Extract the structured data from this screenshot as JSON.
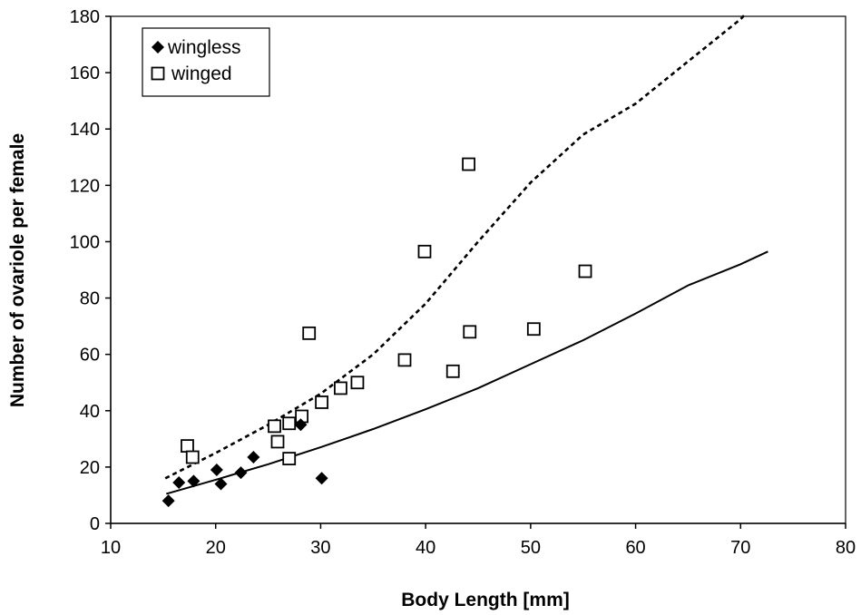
{
  "chart_data": {
    "type": "scatter",
    "xlabel": "Body Length [mm]",
    "ylabel": "Number of ovariole per female",
    "xlim": [
      10,
      80
    ],
    "ylim": [
      0,
      180
    ],
    "xticks": [
      10,
      20,
      30,
      40,
      50,
      60,
      70,
      80
    ],
    "yticks": [
      0,
      20,
      40,
      60,
      80,
      100,
      120,
      140,
      160,
      180
    ],
    "grid": false,
    "legend_position": "top-left",
    "series": [
      {
        "name": "wingless",
        "marker": "filled-diamond",
        "color": "#000000",
        "points": [
          [
            15.5,
            8
          ],
          [
            16.5,
            14.5
          ],
          [
            17.9,
            15
          ],
          [
            20.1,
            19
          ],
          [
            20.5,
            14
          ],
          [
            22.4,
            18
          ],
          [
            23.6,
            23.5
          ],
          [
            28.1,
            35
          ],
          [
            30.1,
            16
          ]
        ]
      },
      {
        "name": "winged",
        "marker": "open-square",
        "color": "#000000",
        "points": [
          [
            17.3,
            27.5
          ],
          [
            17.8,
            23.5
          ],
          [
            25.6,
            34.5
          ],
          [
            25.9,
            29
          ],
          [
            27.0,
            35.5
          ],
          [
            27.0,
            23
          ],
          [
            28.2,
            38
          ],
          [
            28.9,
            67.5
          ],
          [
            30.1,
            43
          ],
          [
            31.9,
            48
          ],
          [
            33.5,
            50
          ],
          [
            38.0,
            58
          ],
          [
            39.9,
            96.5
          ],
          [
            42.6,
            54
          ],
          [
            44.1,
            127.5
          ],
          [
            44.2,
            68
          ],
          [
            50.3,
            69
          ],
          [
            55.2,
            89.5
          ]
        ]
      }
    ],
    "fit_lines": [
      {
        "style": "solid",
        "color": "#000000",
        "points": [
          [
            15.3,
            10.5
          ],
          [
            20,
            15.5
          ],
          [
            25,
            21
          ],
          [
            30,
            27
          ],
          [
            35,
            33.5
          ],
          [
            40,
            40.5
          ],
          [
            45,
            48
          ],
          [
            50,
            56.5
          ],
          [
            55,
            65
          ],
          [
            60,
            74.5
          ],
          [
            65,
            84.5
          ],
          [
            70,
            92
          ],
          [
            72.6,
            96.5
          ]
        ]
      },
      {
        "style": "dashed",
        "color": "#000000",
        "points": [
          [
            15.2,
            16
          ],
          [
            20,
            25
          ],
          [
            25,
            35
          ],
          [
            30,
            46
          ],
          [
            35,
            60
          ],
          [
            40,
            78
          ],
          [
            45,
            100
          ],
          [
            50,
            121
          ],
          [
            55,
            138
          ],
          [
            60,
            149
          ],
          [
            65,
            164
          ],
          [
            70,
            179
          ],
          [
            70.5,
            181
          ]
        ]
      }
    ]
  }
}
